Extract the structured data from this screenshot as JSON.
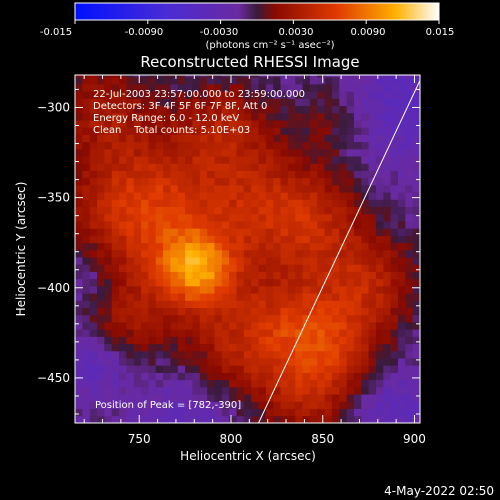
{
  "colorbar": {
    "ticks": [
      "-0.015",
      "-0.0090",
      "-0.0030",
      "0.0030",
      "0.0090",
      "0.015"
    ],
    "unit": "(photons cm⁻² s⁻¹ asec⁻²)"
  },
  "annotations": {
    "time_range": "22-Jul-2003 23:57:00.000 to 23:59:00.000",
    "detectors": "Detectors: 3F 4F 5F 6F 7F 8F, Att 0",
    "energy": "Energy Range: 6.0 - 12.0 keV",
    "method": "Clean    Total counts: 5.10E+03",
    "peak": "Position of Peak = [782,-390]"
  },
  "footer": {
    "date": "4-May-2022 02:50"
  },
  "chart_data": {
    "type": "heatmap",
    "title": "Reconstructed RHESSI Image",
    "xlabel": "Heliocentric X (arcsec)",
    "ylabel": "Heliocentric Y (arcsec)",
    "xlim": [
      715,
      903
    ],
    "ylim": [
      -475,
      -282
    ],
    "x_ticks": [
      750,
      800,
      850,
      900
    ],
    "y_ticks": [
      -300,
      -350,
      -400,
      -450
    ],
    "color_range": [
      -0.015,
      0.015
    ],
    "peak": {
      "x": 782,
      "y": -390
    },
    "limb_line": {
      "x1": 815,
      "y1": -475,
      "x2": 903,
      "y2": -285
    },
    "blobs": [
      {
        "x": 782,
        "y": -390,
        "r": 14,
        "v": 0.008
      },
      {
        "x": 770,
        "y": -380,
        "r": 30,
        "v": 0.004
      },
      {
        "x": 748,
        "y": -350,
        "r": 26,
        "v": 0.0055
      },
      {
        "x": 730,
        "y": -300,
        "r": 18,
        "v": 0.0035
      },
      {
        "x": 740,
        "y": -420,
        "r": 16,
        "v": 0.003
      },
      {
        "x": 800,
        "y": -440,
        "r": 22,
        "v": 0.004
      },
      {
        "x": 830,
        "y": -420,
        "r": 20,
        "v": 0.0045
      },
      {
        "x": 815,
        "y": -350,
        "r": 24,
        "v": 0.004
      },
      {
        "x": 845,
        "y": -365,
        "r": 20,
        "v": 0.0045
      },
      {
        "x": 858,
        "y": -430,
        "r": 20,
        "v": 0.005
      },
      {
        "x": 875,
        "y": -395,
        "r": 18,
        "v": 0.0045
      },
      {
        "x": 795,
        "y": -310,
        "r": 18,
        "v": 0.004
      },
      {
        "x": 855,
        "y": -305,
        "r": 14,
        "v": 0.002
      },
      {
        "x": 845,
        "y": -460,
        "r": 18,
        "v": 0.004
      },
      {
        "x": 725,
        "y": -440,
        "r": 14,
        "v": -0.003
      },
      {
        "x": 895,
        "y": -300,
        "r": 22,
        "v": -0.003
      },
      {
        "x": 885,
        "y": -465,
        "r": 18,
        "v": -0.003
      },
      {
        "x": 720,
        "y": -395,
        "r": 14,
        "v": -0.002
      },
      {
        "x": 780,
        "y": -465,
        "r": 20,
        "v": -0.003
      }
    ]
  }
}
